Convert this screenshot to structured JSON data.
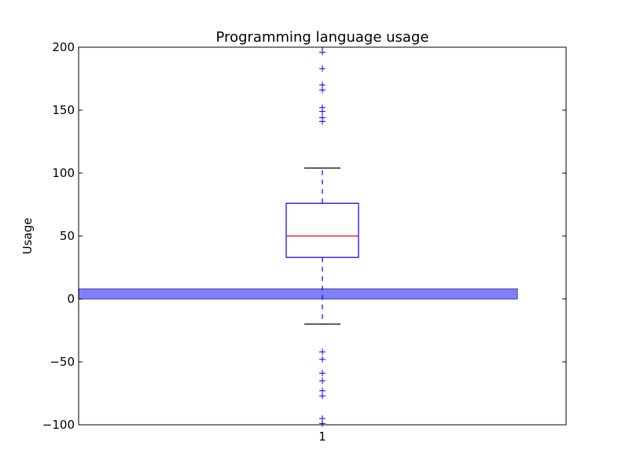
{
  "chart_data": {
    "type": "box",
    "title": "Programming language usage",
    "xlabel": "",
    "ylabel": "Usage",
    "categories": [
      "1"
    ],
    "ylim": [
      -100,
      200
    ],
    "yticks": [
      -100,
      -50,
      0,
      50,
      100,
      150,
      200
    ],
    "ytick_labels": [
      "−100",
      "−50",
      "0",
      "50",
      "100",
      "150",
      "200"
    ],
    "grid": false,
    "box": {
      "category": "1",
      "q1": 33,
      "median": 50,
      "q3": 76,
      "whisker_low": -20,
      "whisker_high": 104,
      "outliers": [
        196,
        183,
        170,
        166,
        152,
        149,
        144,
        141,
        -42,
        -48,
        -59,
        -65,
        -73,
        -77,
        -95,
        -99
      ]
    },
    "bar": {
      "x_start": 0.5,
      "x_end": 1.4,
      "bottom": 0,
      "top": 8
    },
    "colors": {
      "box": "#0000ff",
      "median": "#ff0000",
      "whisker": "#0000ff",
      "cap": "#000000",
      "outlier": "#0000ff",
      "bar_fill": "#8080ff",
      "bar_edge": "#5050a0"
    }
  }
}
